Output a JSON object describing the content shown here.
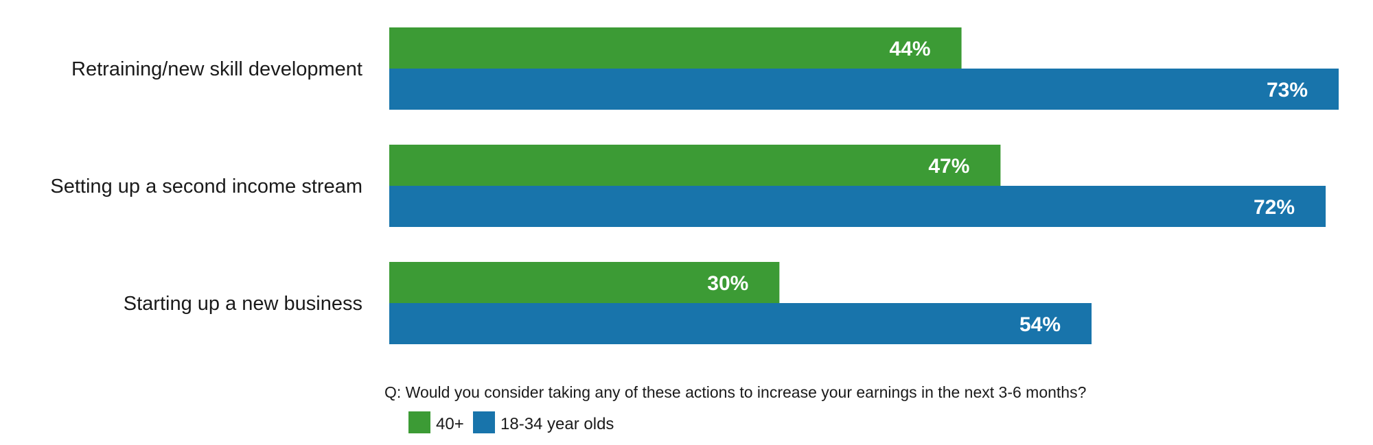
{
  "chart_data": {
    "type": "bar",
    "orientation": "horizontal",
    "categories": [
      "Retraining/new skill development",
      "Setting up a second income stream",
      "Starting up a new business"
    ],
    "series": [
      {
        "name": "40+",
        "color": "#3c9b35",
        "values": [
          44,
          47,
          30
        ],
        "labels": [
          "44%",
          "47%",
          "30%"
        ]
      },
      {
        "name": "18-34 year olds",
        "color": "#1874ab",
        "values": [
          73,
          72,
          54
        ],
        "labels": [
          "73%",
          "72%",
          "54%"
        ]
      }
    ],
    "xlim": [
      0,
      73
    ],
    "grid": false,
    "legend_position": "bottom-left",
    "note": "Q: Would you consider taking any of these actions to increase your earnings in the next 3-6 months?"
  }
}
